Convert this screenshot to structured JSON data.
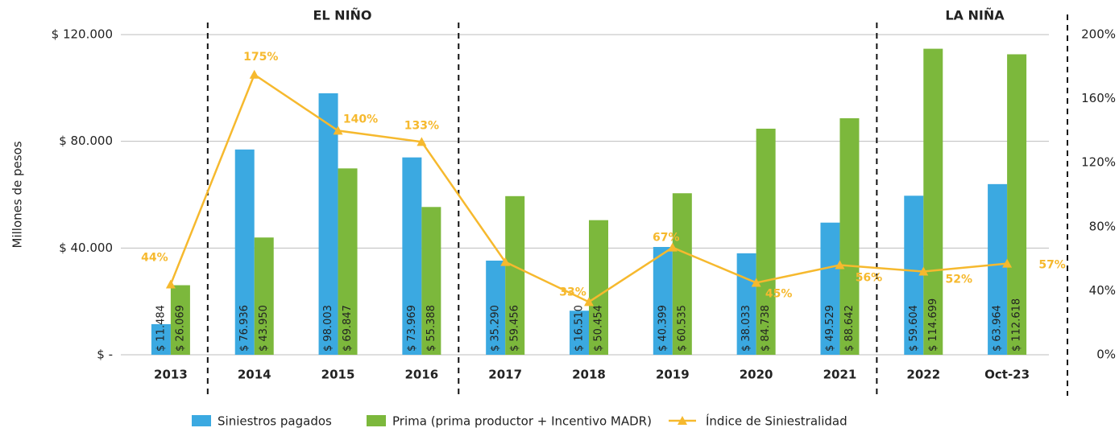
{
  "chart_data": {
    "type": "bar",
    "y_label": "Millones de pesos",
    "annotations": [
      "EL NIÑO",
      "LA NIÑA"
    ],
    "categories": [
      "2013",
      "2014",
      "2015",
      "2016",
      "2017",
      "2018",
      "2019",
      "2020",
      "2021",
      "2022",
      "Oct-23"
    ],
    "series": [
      {
        "name": "Siniestros pagados",
        "color": "#3ba9e1",
        "values": [
          11484,
          76936,
          98003,
          73969,
          35290,
          16510,
          40399,
          38033,
          49529,
          59604,
          63964
        ],
        "value_labels": [
          "$ 11.484",
          "$ 76.936",
          "$ 98.003",
          "$ 73.969",
          "$ 35.290",
          "$ 16.510",
          "$ 40.399",
          "$ 38.033",
          "$ 49.529",
          "$ 59.604",
          "$ 63.964"
        ]
      },
      {
        "name": "Prima (prima productor + Incentivo MADR)",
        "color": "#7cb83c",
        "values": [
          26069,
          43950,
          69847,
          55388,
          59456,
          50454,
          60535,
          84738,
          88642,
          114699,
          112618
        ],
        "value_labels": [
          "$ 26.069",
          "$ 43.950",
          "$ 69.847",
          "$ 55.388",
          "$ 59.456",
          "$ 50.454",
          "$ 60.535",
          "$ 84.738",
          "$ 88.642",
          "$ 114.699",
          "$ 112.618"
        ]
      },
      {
        "name": "Índice de Siniestralidad",
        "color": "#f6b92e",
        "type": "line",
        "axis": "y2",
        "values": [
          44,
          175,
          140,
          133,
          58,
          33,
          67,
          45,
          56,
          52,
          57
        ],
        "value_labels": [
          "44%",
          "175%",
          "140%",
          "133%",
          null,
          "33%",
          "67%",
          "45%",
          "56%",
          "52%",
          "57%"
        ]
      }
    ],
    "ylim": [
      0,
      120000
    ],
    "yticks": [
      {
        "value": 0,
        "label": "$ -"
      },
      {
        "value": 40000,
        "label": "$ 40.000"
      },
      {
        "value": 80000,
        "label": "$ 80.000"
      },
      {
        "value": 120000,
        "label": "$ 120.000"
      }
    ],
    "y2lim": [
      0,
      200
    ],
    "y2ticks": [
      {
        "value": 0,
        "label": "0%"
      },
      {
        "value": 40,
        "label": "40%"
      },
      {
        "value": 80,
        "label": "80%"
      },
      {
        "value": 120,
        "label": "120%"
      },
      {
        "value": 160,
        "label": "160%"
      },
      {
        "value": 200,
        "label": "200%"
      }
    ],
    "grid": true
  }
}
